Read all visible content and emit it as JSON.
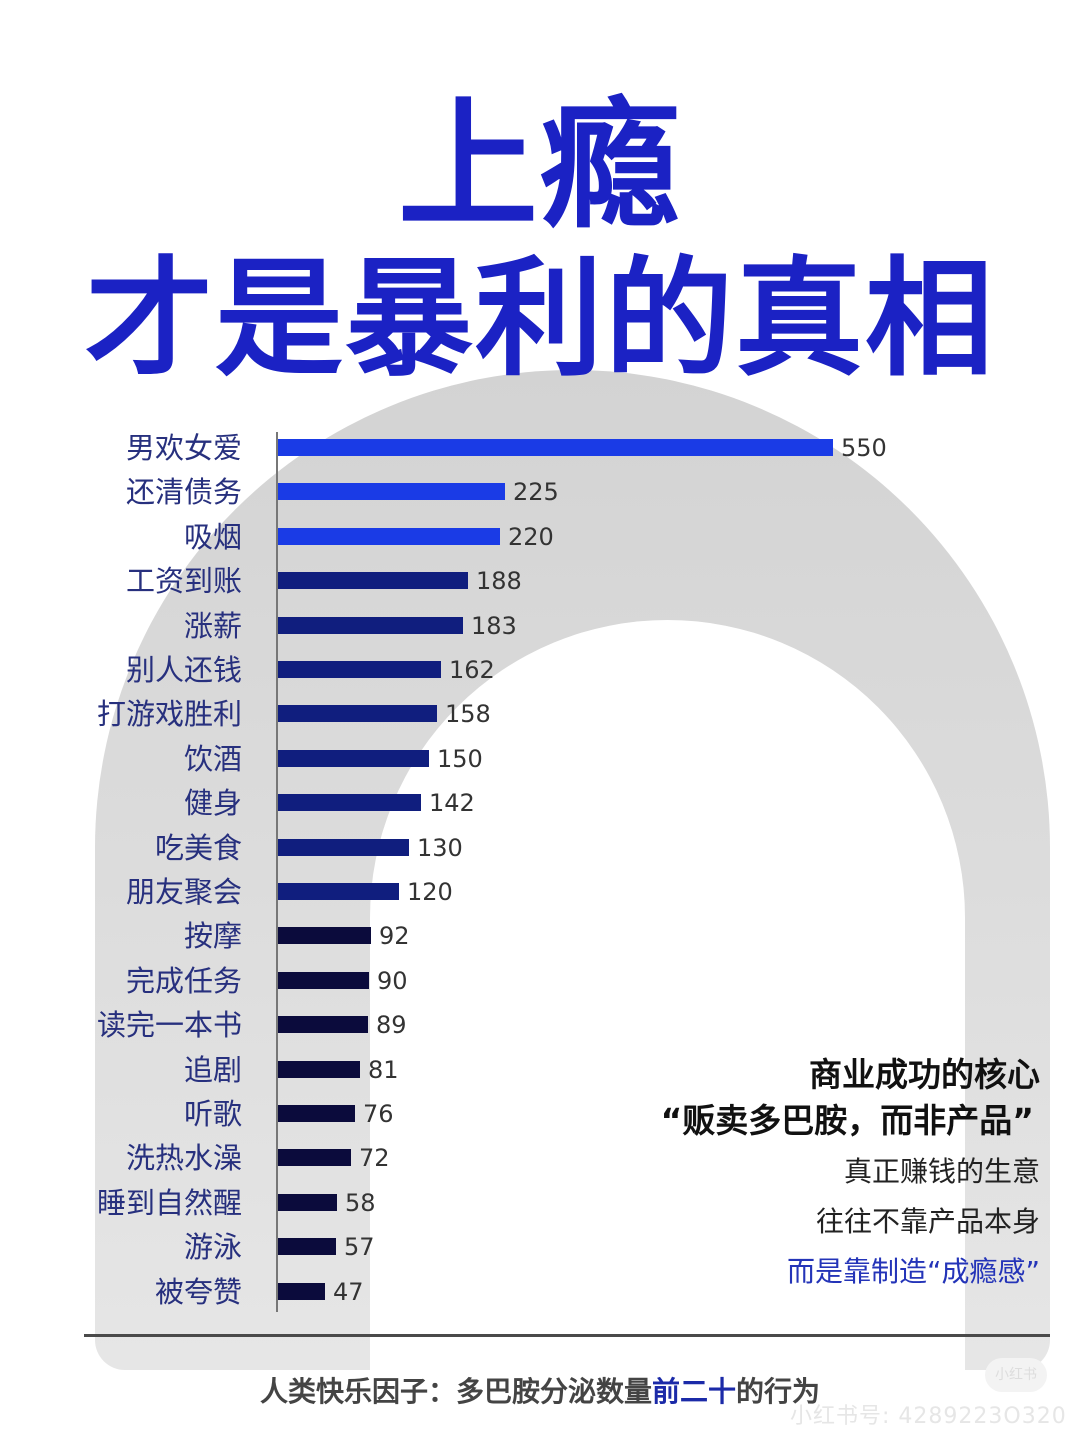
{
  "title": {
    "line1": "上瘾",
    "line2": "才是暴利的真相",
    "color": "#1b22c4"
  },
  "chart_data": {
    "type": "bar",
    "orientation": "horizontal",
    "title": "上瘾 才是暴利的真相",
    "xlabel": "",
    "ylabel": "",
    "caption": "人类快乐因子：多巴胺分泌数量前二十的行为",
    "grid": false,
    "legend": null,
    "xlim": [
      0,
      550
    ],
    "categories": [
      "男欢女爱",
      "还清债务",
      "吸烟",
      "工资到账",
      "涨薪",
      "别人还钱",
      "打游戏胜利",
      "饮酒",
      "健身",
      "吃美食",
      "朋友聚会",
      "按摩",
      "完成任务",
      "读完一本书",
      "追剧",
      "听歌",
      "洗热水澡",
      "睡到自然醒",
      "游泳",
      "被夸赞"
    ],
    "values": [
      550,
      225,
      220,
      188,
      183,
      162,
      158,
      150,
      142,
      130,
      120,
      92,
      90,
      89,
      81,
      76,
      72,
      58,
      57,
      47
    ],
    "bar_colors": [
      "#1a3be6",
      "#1a3be6",
      "#1a3be6",
      "#101e7e",
      "#101e7e",
      "#101e7e",
      "#101e7e",
      "#101e7e",
      "#101e7e",
      "#101e7e",
      "#101e7e",
      "#0b0b3c",
      "#0b0b3c",
      "#0b0b3c",
      "#0b0b3c",
      "#0b0b3c",
      "#0b0b3c",
      "#0b0b3c",
      "#0b0b3c",
      "#0b0b3c"
    ],
    "data_labels": true
  },
  "side_text": {
    "heading": "商业成功的核心",
    "quote": "“贩卖多巴胺，而非产品”",
    "line1": "真正赚钱的生意",
    "line2": "往往不靠产品本身",
    "line3": "而是靠制造“成瘾感”",
    "highlight_color": "#2434b8"
  },
  "footer": {
    "prefix": "人类快乐因子：多巴胺分泌数量",
    "highlight": "前二十",
    "suffix": "的行为"
  },
  "watermark": {
    "text": "小红书号: 4289223O320",
    "badge": "小红书"
  }
}
